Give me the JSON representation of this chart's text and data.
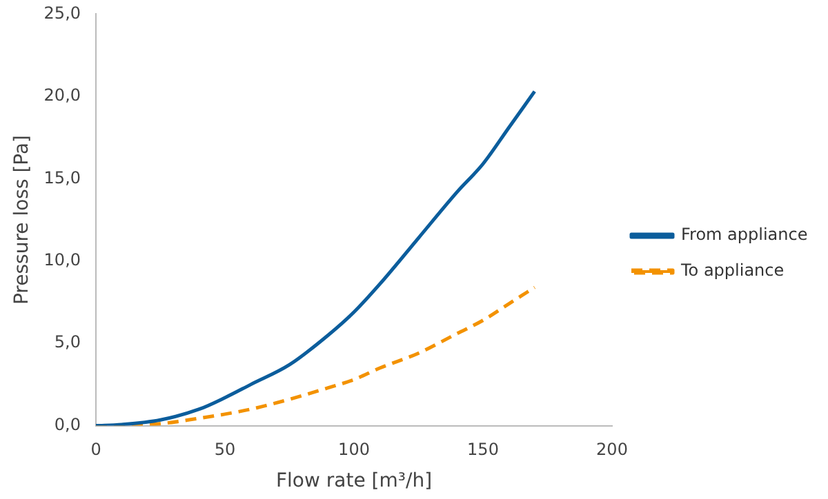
{
  "chart_data": {
    "type": "line",
    "xlabel": "Flow rate [m³/h]",
    "ylabel": "Pressure loss [Pa]",
    "xlim": [
      0,
      200
    ],
    "xticks": [
      0,
      50,
      100,
      150,
      200
    ],
    "ylim": [
      0,
      25
    ],
    "yticks": [
      {
        "value": 0,
        "label": "0,0"
      },
      {
        "value": 5,
        "label": "5,0"
      },
      {
        "value": 10,
        "label": "10,0"
      },
      {
        "value": 15,
        "label": "15,0"
      },
      {
        "value": 20,
        "label": "20,0"
      },
      {
        "value": 25,
        "label": "25,0"
      }
    ],
    "x": [
      0,
      10,
      25,
      40,
      50,
      60,
      75,
      90,
      100,
      110,
      125,
      140,
      150,
      160,
      170
    ],
    "series": [
      {
        "name": "From appliance",
        "color": "#0b5d9c",
        "line_style": "solid",
        "values": [
          0,
          0.07,
          0.35,
          1.0,
          1.7,
          2.5,
          3.7,
          5.5,
          6.9,
          8.6,
          11.4,
          14.2,
          15.9,
          18.1,
          20.3
        ]
      },
      {
        "name": "To appliance",
        "color": "#f39200",
        "line_style": "dashed",
        "values": [
          0,
          0.02,
          0.12,
          0.45,
          0.7,
          1.0,
          1.6,
          2.3,
          2.8,
          3.5,
          4.4,
          5.6,
          6.4,
          7.4,
          8.4
        ]
      }
    ],
    "grid": false,
    "legend": "right",
    "marker": "none"
  }
}
